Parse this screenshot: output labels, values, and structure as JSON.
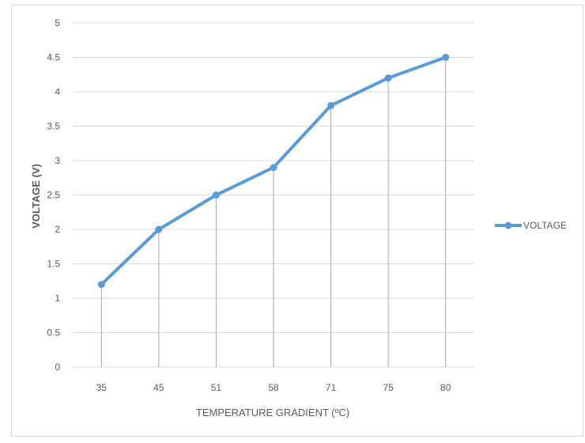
{
  "chart_data": {
    "type": "line",
    "categories": [
      "35",
      "45",
      "51",
      "58",
      "71",
      "75",
      "80"
    ],
    "series": [
      {
        "name": "VOLTAGE",
        "values": [
          1.2,
          2.0,
          2.5,
          2.9,
          3.8,
          4.2,
          4.5
        ],
        "color": "#5b9bd5"
      }
    ],
    "y_ticks": [
      "0",
      "0.5",
      "1",
      "1.5",
      "2",
      "2.5",
      "3",
      "3.5",
      "4",
      "4.5",
      "5"
    ],
    "xlabel": "TEMPERATURE GRADIENT (ºC)",
    "ylabel": "VOLTAGE (V)",
    "ylim": [
      0,
      5
    ],
    "grid": "horizontal",
    "drop_lines": true,
    "legend_position": "right",
    "colors": {
      "gridline": "#d9d9d9",
      "text": "#595959",
      "series": "#5b9bd5"
    }
  }
}
